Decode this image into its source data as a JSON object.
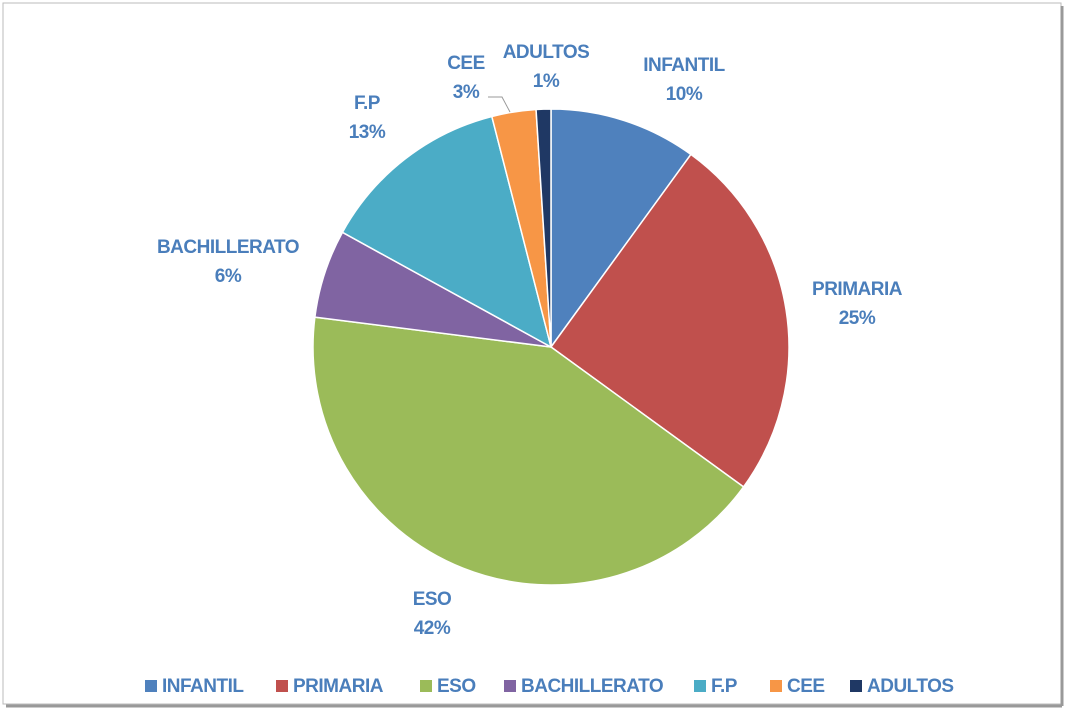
{
  "chart_data": {
    "type": "pie",
    "categories": [
      "INFANTIL",
      "PRIMARIA",
      "ESO",
      "BACHILLERATO",
      "F.P",
      "CEE",
      "ADULTOS"
    ],
    "values": [
      10,
      25,
      42,
      6,
      13,
      3,
      1
    ],
    "value_labels": [
      "10%",
      "25%",
      "42%",
      "6%",
      "13%",
      "3%",
      "1%"
    ],
    "colors": [
      "#4f81bd",
      "#c0504d",
      "#9bbb59",
      "#8064a2",
      "#4bacc6",
      "#f79646",
      "#1f3864"
    ],
    "legend": "bottom"
  }
}
